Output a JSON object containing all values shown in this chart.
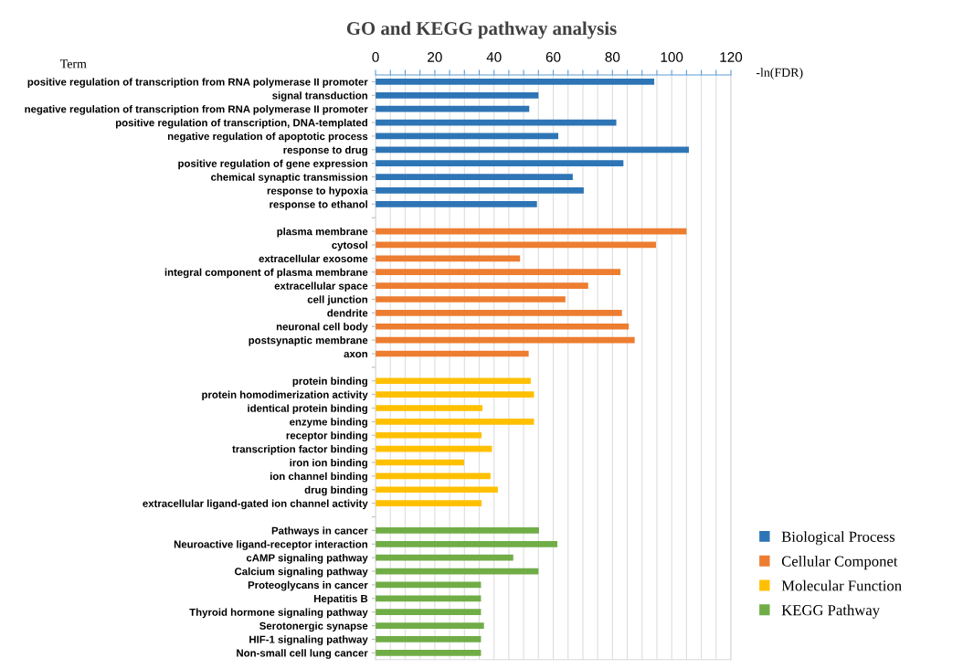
{
  "chart_data": {
    "type": "bar",
    "orientation": "horizontal",
    "title": "GO and KEGG pathway analysis",
    "xlabel": "-ln(FDR)",
    "ylabel": "Term",
    "categories": [
      "positive regulation of transcription from RNA polymerase II promoter",
      "signal transduction",
      "negative regulation of transcription from RNA polymerase II promoter",
      "positive regulation of transcription, DNA-templated",
      "negative regulation of apoptotic process",
      "response to drug",
      "positive regulation of gene expression",
      "chemical synaptic transmission",
      "response to hypoxia",
      "response to ethanol",
      null,
      "plasma membrane",
      "cytosol",
      "extracellular exosome",
      "integral component of plasma membrane",
      "extracellular space",
      "cell junction",
      "dendrite",
      "neuronal cell body",
      "postsynaptic membrane",
      "axon",
      null,
      "protein binding",
      "protein homodimerization activity",
      "identical protein binding",
      "enzyme binding",
      "receptor binding",
      "transcription factor binding",
      "iron ion binding",
      "ion channel binding",
      "drug binding",
      "extracellular ligand-gated ion channel activity",
      null,
      "Pathways in cancer",
      "Neuroactive ligand-receptor interaction",
      "cAMP signaling pathway",
      "Calcium signaling pathway",
      "Proteoglycans in cancer",
      "Hepatitis B",
      "Thyroid hormone signaling pathway",
      "Serotonergic synapse",
      "HIF-1 signaling pathway",
      "Non-small cell lung cancer"
    ],
    "series": [
      {
        "name": "Biological Process",
        "color": "#2e75b6",
        "values": [
          94.1,
          55.0,
          51.9,
          81.3,
          61.7,
          105.8,
          83.7,
          66.6,
          70.3,
          54.5,
          null,
          null,
          null,
          null,
          null,
          null,
          null,
          null,
          null,
          null,
          null,
          null,
          null,
          null,
          null,
          null,
          null,
          null,
          null,
          null,
          null,
          null,
          null,
          null,
          null,
          null,
          null,
          null,
          null,
          null,
          null,
          null,
          null
        ]
      },
      {
        "name": "Cellular Componet",
        "color": "#ed7d31",
        "values": [
          null,
          null,
          null,
          null,
          null,
          null,
          null,
          null,
          null,
          null,
          null,
          105.0,
          94.7,
          48.8,
          82.7,
          71.8,
          64.1,
          83.2,
          85.5,
          87.5,
          51.7,
          null,
          null,
          null,
          null,
          null,
          null,
          null,
          null,
          null,
          null,
          null,
          null,
          null,
          null,
          null,
          null,
          null,
          null,
          null,
          null,
          null,
          null
        ]
      },
      {
        "name": "Molecular Function",
        "color": "#ffc000",
        "values": [
          null,
          null,
          null,
          null,
          null,
          null,
          null,
          null,
          null,
          null,
          null,
          null,
          null,
          null,
          null,
          null,
          null,
          null,
          null,
          null,
          null,
          null,
          52.4,
          53.5,
          36.1,
          53.5,
          35.8,
          39.3,
          29.9,
          38.8,
          41.3,
          35.8,
          null,
          null,
          null,
          null,
          null,
          null,
          null,
          null,
          null,
          null,
          null
        ]
      },
      {
        "name": "KEGG Pathway",
        "color": "#70ad47",
        "values": [
          null,
          null,
          null,
          null,
          null,
          null,
          null,
          null,
          null,
          null,
          null,
          null,
          null,
          null,
          null,
          null,
          null,
          null,
          null,
          null,
          null,
          null,
          null,
          null,
          null,
          null,
          null,
          null,
          null,
          null,
          null,
          null,
          null,
          55.2,
          61.4,
          46.5,
          55.0,
          35.6,
          35.6,
          35.6,
          36.6,
          35.6,
          35.6
        ]
      }
    ],
    "xlim": [
      0,
      120
    ],
    "xticks": [
      0,
      {
        "value": 5,
        "label": null
      },
      {
        "value": 10,
        "label": null
      },
      {
        "value": 15,
        "label": null
      },
      20,
      {
        "value": 25,
        "label": null
      },
      {
        "value": 30,
        "label": null
      },
      {
        "value": 35,
        "label": null
      },
      40,
      {
        "value": 45,
        "label": null
      },
      {
        "value": 50,
        "label": null
      },
      {
        "value": 55,
        "label": null
      },
      60,
      {
        "value": 65,
        "label": null
      },
      {
        "value": 70,
        "label": null
      },
      {
        "value": 75,
        "label": null
      },
      80,
      {
        "value": 85,
        "label": null
      },
      {
        "value": 90,
        "label": null
      },
      {
        "value": 95,
        "label": null
      },
      100,
      {
        "value": 105,
        "label": null
      },
      {
        "value": 110,
        "label": null
      },
      {
        "value": 115,
        "label": null
      },
      120
    ],
    "grid": "x",
    "legend": "bottom right"
  }
}
